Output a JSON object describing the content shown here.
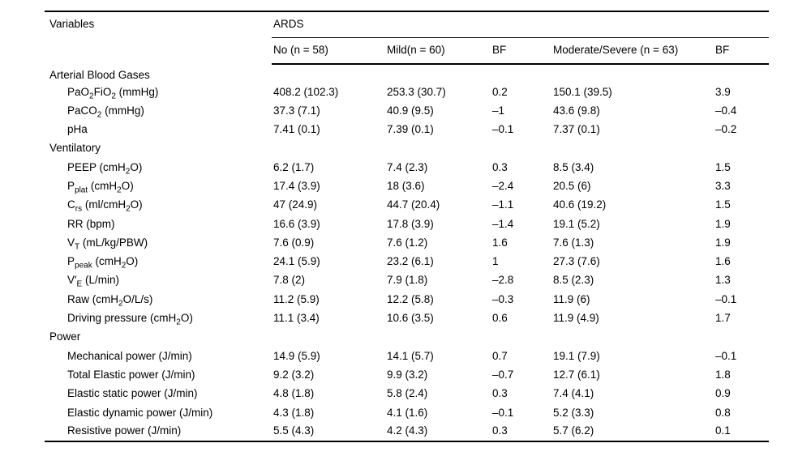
{
  "colors": {
    "background": "#ffffff",
    "text": "#000000",
    "rule": "#000000"
  },
  "table": {
    "header": {
      "variables_label": "Variables",
      "group_label": "ARDS",
      "columns": [
        "No (n = 58)",
        "Mild(n = 60)",
        "BF",
        "Moderate/Severe (n = 63)",
        "BF"
      ]
    },
    "rows": [
      {
        "type": "section",
        "label": "Arterial Blood Gases",
        "cells": [
          "",
          "",
          "",
          "",
          ""
        ]
      },
      {
        "type": "item",
        "label": "PaO_{2}FiO_{2} (mmHg)",
        "cells": [
          "408.2 (102.3)",
          "253.3 (30.7)",
          "0.2",
          "150.1 (39.5)",
          "3.9"
        ]
      },
      {
        "type": "item",
        "label": "PaCO_{2} (mmHg)",
        "cells": [
          "37.3 (7.1)",
          "40.9 (9.5)",
          "–1",
          "43.6 (9.8)",
          "–0.4"
        ]
      },
      {
        "type": "item",
        "label": "pHa",
        "cells": [
          "7.41 (0.1)",
          "7.39 (0.1)",
          "–0.1",
          "7.37 (0.1)",
          "–0.2"
        ]
      },
      {
        "type": "section",
        "label": "Ventilatory",
        "cells": [
          "",
          "",
          "",
          "",
          ""
        ]
      },
      {
        "type": "item",
        "label": "PEEP (cmH_{2}O)",
        "cells": [
          "6.2 (1.7)",
          "7.4 (2.3)",
          "0.3",
          "8.5 (3.4)",
          "1.5"
        ]
      },
      {
        "type": "item",
        "label": "P_{plat} (cmH_{2}O)",
        "cells": [
          "17.4 (3.9)",
          "18 (3.6)",
          "–2.4",
          "20.5 (6)",
          "3.3"
        ]
      },
      {
        "type": "item",
        "label": "C_{rs} (ml/cmH_{2}O)",
        "cells": [
          "47 (24.9)",
          "44.7 (20.4)",
          "–1.1",
          "40.6 (19.2)",
          "1.5"
        ]
      },
      {
        "type": "item",
        "label": "RR (bpm)",
        "cells": [
          "16.6 (3.9)",
          "17.8 (3.9)",
          "–1.4",
          "19.1 (5.2)",
          "1.9"
        ]
      },
      {
        "type": "item",
        "label": "V_{T} (mL/kg/PBW)",
        "cells": [
          "7.6 (0.9)",
          "7.6 (1.2)",
          "1.6",
          "7.6 (1.3)",
          "1.9"
        ]
      },
      {
        "type": "item",
        "label": "P_{peak} (cmH_{2}O)",
        "cells": [
          "24.1 (5.9)",
          "23.2 (6.1)",
          "1",
          "27.3 (7.6)",
          "1.6"
        ]
      },
      {
        "type": "item",
        "label": "V′_{E} (L/min)",
        "cells": [
          "7.8 (2)",
          "7.9 (1.8)",
          "–2.8",
          "8.5 (2.3)",
          "1.3"
        ]
      },
      {
        "type": "item",
        "label": "Raw (cmH_{2}O/L/s)",
        "cells": [
          "11.2 (5.9)",
          "12.2 (5.8)",
          "–0.3",
          "11.9 (6)",
          "–0.1"
        ]
      },
      {
        "type": "item",
        "label": "Driving pressure (cmH_{2}O)",
        "cells": [
          "11.1 (3.4)",
          "10.6 (3.5)",
          "0.6",
          "11.9 (4.9)",
          "1.7"
        ]
      },
      {
        "type": "section",
        "label": "Power",
        "cells": [
          "",
          "",
          "",
          "",
          ""
        ]
      },
      {
        "type": "item",
        "label": "Mechanical power (J/min)",
        "cells": [
          "14.9 (5.9)",
          "14.1 (5.7)",
          "0.7",
          "19.1 (7.9)",
          "–0.1"
        ]
      },
      {
        "type": "item",
        "label": "Total Elastic power (J/min)",
        "cells": [
          "9.2 (3.2)",
          "9.9 (3.2)",
          "–0.7",
          "12.7 (6.1)",
          "1.8"
        ]
      },
      {
        "type": "item",
        "label": "Elastic static power (J/min)",
        "cells": [
          "4.8 (1.8)",
          "5.8 (2.4)",
          "0.3",
          "7.4 (4.1)",
          "0.9"
        ]
      },
      {
        "type": "item",
        "label": "Elastic dynamic power (J/min)",
        "cells": [
          "4.3 (1.8)",
          "4.1 (1.6)",
          "–0.1",
          "5.2 (3.3)",
          "0.8"
        ]
      },
      {
        "type": "item",
        "label": "Resistive power (J/min)",
        "cells": [
          "5.5 (4.3)",
          "4.2 (4.3)",
          "0.3",
          "5.7 (6.2)",
          "0.1"
        ]
      }
    ]
  }
}
